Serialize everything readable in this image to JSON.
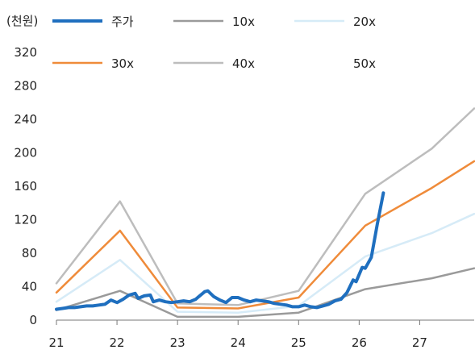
{
  "chart_data": {
    "type": "line",
    "unit_label": "(천원)",
    "ylim": [
      0,
      320
    ],
    "yticks": [
      0,
      40,
      80,
      120,
      160,
      200,
      240,
      280,
      320
    ],
    "xlim": [
      21,
      27.9
    ],
    "xticks": [
      21,
      22,
      23,
      24,
      25,
      26,
      27
    ],
    "grid": false,
    "legend_position": "top",
    "series": [
      {
        "name": "주가",
        "color": "#1f6fbf",
        "width": 4,
        "points": [
          [
            21.0,
            13
          ],
          [
            21.1,
            14
          ],
          [
            21.2,
            15
          ],
          [
            21.3,
            15
          ],
          [
            21.4,
            16
          ],
          [
            21.5,
            17
          ],
          [
            21.6,
            17
          ],
          [
            21.7,
            18
          ],
          [
            21.8,
            19
          ],
          [
            21.9,
            24
          ],
          [
            22.0,
            21
          ],
          [
            22.1,
            25
          ],
          [
            22.2,
            30
          ],
          [
            22.3,
            32
          ],
          [
            22.35,
            26
          ],
          [
            22.45,
            29
          ],
          [
            22.55,
            30
          ],
          [
            22.6,
            22
          ],
          [
            22.7,
            24
          ],
          [
            22.8,
            22
          ],
          [
            22.9,
            21
          ],
          [
            23.0,
            22
          ],
          [
            23.1,
            23
          ],
          [
            23.2,
            22
          ],
          [
            23.3,
            25
          ],
          [
            23.35,
            28
          ],
          [
            23.45,
            34
          ],
          [
            23.5,
            35
          ],
          [
            23.6,
            28
          ],
          [
            23.7,
            24
          ],
          [
            23.8,
            21
          ],
          [
            23.9,
            27
          ],
          [
            24.0,
            27
          ],
          [
            24.1,
            24
          ],
          [
            24.2,
            22
          ],
          [
            24.3,
            24
          ],
          [
            24.4,
            23
          ],
          [
            24.5,
            22
          ],
          [
            24.6,
            20
          ],
          [
            24.7,
            19
          ],
          [
            24.8,
            18
          ],
          [
            24.9,
            16
          ],
          [
            25.0,
            16
          ],
          [
            25.1,
            18
          ],
          [
            25.2,
            16
          ],
          [
            25.3,
            15
          ],
          [
            25.4,
            17
          ],
          [
            25.5,
            19
          ],
          [
            25.6,
            23
          ],
          [
            25.7,
            25
          ],
          [
            25.8,
            33
          ],
          [
            25.9,
            48
          ],
          [
            25.95,
            46
          ],
          [
            26.05,
            63
          ],
          [
            26.1,
            62
          ],
          [
            26.2,
            75
          ],
          [
            26.3,
            115
          ],
          [
            26.4,
            152
          ]
        ]
      },
      {
        "name": "10x",
        "color": "#9a9a9a",
        "width": 2.5,
        "points": [
          [
            21.0,
            12
          ],
          [
            22.05,
            35
          ],
          [
            23.0,
            4
          ],
          [
            24.0,
            4
          ],
          [
            25.0,
            9
          ],
          [
            26.1,
            37
          ],
          [
            27.2,
            50
          ],
          [
            27.9,
            62
          ]
        ]
      },
      {
        "name": "20x",
        "color": "#d6ebf7",
        "width": 2.5,
        "points": [
          [
            21.0,
            22
          ],
          [
            22.05,
            72
          ],
          [
            23.0,
            10
          ],
          [
            24.0,
            9
          ],
          [
            25.0,
            17
          ],
          [
            26.1,
            76
          ],
          [
            27.2,
            104
          ],
          [
            27.9,
            127
          ]
        ]
      },
      {
        "name": "30x",
        "color": "#ef8b3a",
        "width": 2.5,
        "points": [
          [
            21.0,
            33
          ],
          [
            22.05,
            107
          ],
          [
            23.0,
            15
          ],
          [
            24.0,
            14
          ],
          [
            25.0,
            27
          ],
          [
            26.1,
            113
          ],
          [
            27.2,
            158
          ],
          [
            27.9,
            190
          ]
        ]
      },
      {
        "name": "40x",
        "color": "#bdbdbd",
        "width": 2.5,
        "points": [
          [
            21.0,
            44
          ],
          [
            22.05,
            142
          ],
          [
            23.0,
            20
          ],
          [
            24.0,
            18
          ],
          [
            25.0,
            35
          ],
          [
            26.1,
            151
          ],
          [
            27.2,
            205
          ],
          [
            27.9,
            253
          ]
        ]
      },
      {
        "name": "50x",
        "color": "#ffffff",
        "width": 0,
        "points": []
      }
    ]
  }
}
